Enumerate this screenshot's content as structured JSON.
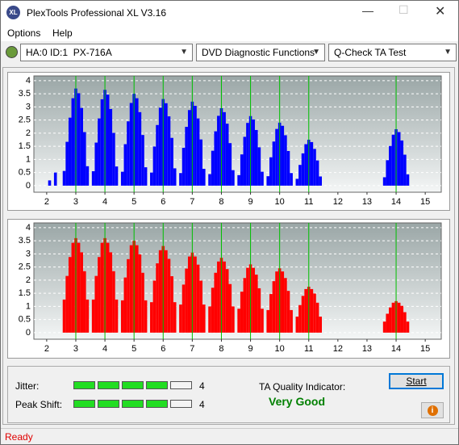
{
  "window": {
    "title": "PlexTools Professional XL V3.16"
  },
  "menu": [
    "Options",
    "Help"
  ],
  "toolbar": {
    "drive": "HA:0 ID:1  PX-716A",
    "function": "DVD Diagnostic Functions",
    "test": "Q-Check TA Test"
  },
  "charts": [
    {
      "color": "#0000ff",
      "marker_color": "#00c000",
      "xlim": [
        1.56,
        15.55
      ],
      "ylim": [
        -0.25,
        4.18
      ],
      "xticks": [
        2,
        3,
        4,
        5,
        6,
        7,
        8,
        9,
        10,
        11,
        12,
        13,
        14,
        15
      ],
      "yticks": [
        0,
        0.5,
        1,
        1.5,
        2,
        2.5,
        3,
        3.5,
        4
      ],
      "markers": [
        3,
        4,
        5,
        6,
        7,
        8,
        9,
        10,
        11,
        14
      ],
      "x": [
        2.1,
        2.3,
        2.6,
        2.7,
        2.8,
        2.9,
        3,
        3.1,
        3.2,
        3.3,
        3.4,
        3.6,
        3.7,
        3.8,
        3.9,
        4,
        4.1,
        4.2,
        4.3,
        4.4,
        4.6,
        4.7,
        4.8,
        4.9,
        5,
        5.1,
        5.2,
        5.3,
        5.4,
        5.6,
        5.7,
        5.8,
        5.9,
        6,
        6.1,
        6.2,
        6.3,
        6.4,
        6.6,
        6.7,
        6.8,
        6.9,
        7,
        7.1,
        7.2,
        7.3,
        7.4,
        7.6,
        7.7,
        7.8,
        7.9,
        8,
        8.1,
        8.2,
        8.3,
        8.4,
        8.6,
        8.7,
        8.8,
        8.9,
        9,
        9.1,
        9.2,
        9.3,
        9.4,
        9.6,
        9.7,
        9.8,
        9.9,
        10,
        10.1,
        10.2,
        10.3,
        10.4,
        10.6,
        10.7,
        10.8,
        10.9,
        11,
        11.1,
        11.2,
        11.3,
        11.4,
        13.6,
        13.7,
        13.8,
        13.9,
        14,
        14.1,
        14.2,
        14.3,
        14.4
      ],
      "values": [
        0.2,
        0.5,
        0.56,
        1.67,
        2.59,
        3.33,
        3.7,
        3.52,
        2.96,
        2.04,
        0.74,
        0.55,
        1.64,
        2.56,
        3.29,
        3.65,
        3.47,
        2.92,
        2.01,
        0.73,
        0.53,
        1.58,
        2.45,
        3.15,
        3.5,
        3.33,
        2.8,
        1.93,
        0.7,
        0.5,
        1.49,
        2.31,
        2.97,
        3.3,
        3.14,
        2.64,
        1.82,
        0.66,
        0.48,
        1.44,
        2.24,
        2.88,
        3.2,
        3.04,
        2.56,
        1.76,
        0.64,
        0.44,
        1.33,
        2.07,
        2.66,
        2.95,
        2.8,
        2.36,
        1.62,
        0.59,
        0.4,
        1.19,
        1.86,
        2.39,
        2.65,
        2.52,
        2.12,
        1.46,
        0.53,
        0.36,
        1.08,
        1.68,
        2.16,
        2.4,
        2.28,
        1.92,
        1.32,
        0.48,
        0.26,
        0.79,
        1.23,
        1.58,
        1.75,
        1.66,
        1.4,
        0.96,
        0.35,
        0.32,
        0.97,
        1.51,
        1.94,
        2.15,
        2.04,
        1.72,
        1.18,
        0.43
      ]
    },
    {
      "color": "#ff0000",
      "marker_color": "#00c000",
      "xlim": [
        1.56,
        15.55
      ],
      "ylim": [
        -0.25,
        4.18
      ],
      "xticks": [
        2,
        3,
        4,
        5,
        6,
        7,
        8,
        9,
        10,
        11,
        12,
        13,
        14,
        15
      ],
      "yticks": [
        0,
        0.5,
        1,
        1.5,
        2,
        2.5,
        3,
        3.5,
        4
      ],
      "markers": [
        3,
        4,
        5,
        6,
        7,
        8,
        9,
        10,
        11,
        14
      ],
      "x": [
        2.6,
        2.7,
        2.8,
        2.9,
        3,
        3.1,
        3.2,
        3.3,
        3.4,
        3.6,
        3.7,
        3.8,
        3.9,
        4,
        4.1,
        4.2,
        4.3,
        4.4,
        4.6,
        4.7,
        4.8,
        4.9,
        5,
        5.1,
        5.2,
        5.3,
        5.4,
        5.6,
        5.7,
        5.8,
        5.9,
        6,
        6.1,
        6.2,
        6.3,
        6.4,
        6.6,
        6.7,
        6.8,
        6.9,
        7,
        7.1,
        7.2,
        7.3,
        7.4,
        7.6,
        7.7,
        7.8,
        7.9,
        8,
        8.1,
        8.2,
        8.3,
        8.4,
        8.6,
        8.7,
        8.8,
        8.9,
        9,
        9.1,
        9.2,
        9.3,
        9.4,
        9.6,
        9.7,
        9.8,
        9.9,
        10,
        10.1,
        10.2,
        10.3,
        10.4,
        10.6,
        10.7,
        10.8,
        10.9,
        11,
        11.1,
        11.2,
        11.3,
        11.4,
        13.6,
        13.7,
        13.8,
        13.9,
        14,
        14.1,
        14.2,
        14.3,
        14.4
      ],
      "values": [
        1.26,
        2.16,
        2.88,
        3.42,
        3.6,
        3.42,
        3.06,
        2.34,
        1.26,
        1.26,
        2.16,
        2.88,
        3.42,
        3.6,
        3.42,
        3.06,
        2.34,
        1.26,
        1.23,
        2.1,
        2.8,
        3.33,
        3.5,
        3.33,
        2.98,
        2.28,
        1.23,
        1.16,
        1.98,
        2.64,
        3.14,
        3.3,
        3.14,
        2.81,
        2.15,
        1.16,
        1.07,
        1.83,
        2.44,
        2.9,
        3.05,
        2.9,
        2.59,
        1.98,
        1.07,
        1.0,
        1.71,
        2.28,
        2.71,
        2.85,
        2.71,
        2.42,
        1.85,
        1.0,
        0.91,
        1.56,
        2.08,
        2.47,
        2.6,
        2.47,
        2.21,
        1.69,
        0.91,
        0.86,
        1.47,
        1.96,
        2.33,
        2.45,
        2.33,
        2.08,
        1.59,
        0.86,
        0.61,
        1.05,
        1.4,
        1.66,
        1.75,
        1.66,
        1.49,
        1.14,
        0.61,
        0.42,
        0.72,
        0.96,
        1.14,
        1.2,
        1.14,
        1.02,
        0.78,
        0.42
      ]
    }
  ],
  "jitter": {
    "label": "Jitter:",
    "value": 4
  },
  "peak_shift": {
    "label": "Peak Shift:",
    "value": 4
  },
  "ta_quality": {
    "label": "TA Quality Indicator:",
    "value": "Very Good"
  },
  "start_button": "Start",
  "status": "Ready"
}
